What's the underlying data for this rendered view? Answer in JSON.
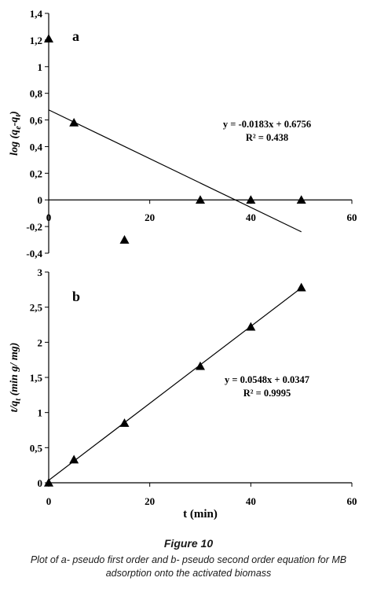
{
  "chart_data": [
    {
      "type": "scatter",
      "panel_label": "a",
      "ylabel_parts": [
        "log (q",
        "e",
        "-q",
        "t",
        ")"
      ],
      "xlim": [
        0,
        60
      ],
      "ylim": [
        -0.4,
        1.4
      ],
      "x_ticks": [
        0,
        20,
        40,
        60
      ],
      "x_tick_labels": [
        "0",
        "20",
        "40",
        "60"
      ],
      "y_ticks": [
        -0.4,
        -0.2,
        0,
        0.2,
        0.4,
        0.6,
        0.8,
        1,
        1.2,
        1.4
      ],
      "y_tick_labels": [
        "-0,4",
        "-0,2",
        "0",
        "0,2",
        "0,4",
        "0,6",
        "0,8",
        "1",
        "1,2",
        "1,4"
      ],
      "points": [
        {
          "x": 0,
          "y": 1.21
        },
        {
          "x": 5,
          "y": 0.58
        },
        {
          "x": 15,
          "y": -0.3
        },
        {
          "x": 30,
          "y": 0
        },
        {
          "x": 40,
          "y": 0
        },
        {
          "x": 50,
          "y": 0
        }
      ],
      "fit": {
        "slope": -0.0183,
        "intercept": 0.6756,
        "x_range": [
          0,
          50
        ]
      },
      "zero_line": true,
      "equation": "y = -0.0183x + 0.6756",
      "r2": "R² = 0.438"
    },
    {
      "type": "scatter",
      "panel_label": "b",
      "ylabel_parts": [
        "t/q",
        "t",
        " (min g/ mg)"
      ],
      "xlabel": "t (min)",
      "xlim": [
        0,
        60
      ],
      "ylim": [
        0,
        3
      ],
      "x_ticks": [
        0,
        20,
        40,
        60
      ],
      "x_tick_labels": [
        "0",
        "20",
        "40",
        "60"
      ],
      "y_ticks": [
        0,
        0.5,
        1,
        1.5,
        2,
        2.5,
        3
      ],
      "y_tick_labels": [
        "0",
        "0,5",
        "1",
        "1,5",
        "2",
        "2,5",
        "3"
      ],
      "points": [
        {
          "x": 0,
          "y": 0
        },
        {
          "x": 5,
          "y": 0.33
        },
        {
          "x": 15,
          "y": 0.85
        },
        {
          "x": 30,
          "y": 1.66
        },
        {
          "x": 40,
          "y": 2.22
        },
        {
          "x": 50,
          "y": 2.78
        }
      ],
      "fit": {
        "slope": 0.0548,
        "intercept": 0.0347,
        "x_range": [
          0,
          50
        ]
      },
      "equation": "y = 0.0548x + 0.0347",
      "r2": "R² = 0.9995"
    }
  ],
  "caption": {
    "title": "Figure 10",
    "text": "Plot of a- pseudo first order and b- pseudo second order equation for MB adsorption onto the activated biomass"
  }
}
